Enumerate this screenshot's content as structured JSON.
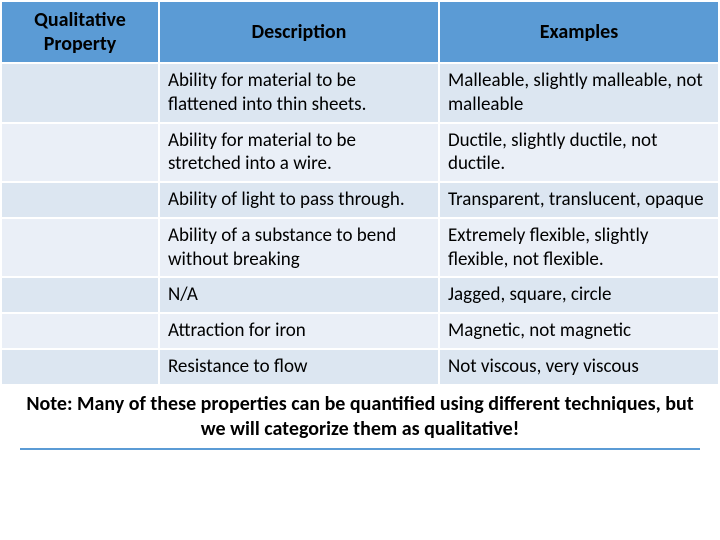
{
  "table": {
    "header_bg": "#5b9bd5",
    "band_a_bg": "#dce6f1",
    "band_b_bg": "#eaeff7",
    "border_color": "#ffffff",
    "text_color": "#000000",
    "header_fontsize": 20,
    "cell_fontsize": 19,
    "columns": [
      "Qualitative Property",
      "Description",
      "Examples"
    ],
    "rows": [
      {
        "property": "",
        "description": "Ability for material to be flattened into thin sheets.",
        "examples": "Malleable, slightly malleable, not malleable"
      },
      {
        "property": "",
        "description": "Ability for material to be stretched into a wire.",
        "examples": "Ductile, slightly ductile, not ductile."
      },
      {
        "property": "",
        "description": "Ability of light to pass through.",
        "examples": "Transparent, translucent, opaque"
      },
      {
        "property": "",
        "description": "Ability of a substance to bend without breaking",
        "examples": "Extremely flexible, slightly flexible, not flexible."
      },
      {
        "property": "",
        "description": "N/A",
        "examples": "Jagged, square, circle"
      },
      {
        "property": "",
        "description": "Attraction for iron",
        "examples": "Magnetic, not magnetic"
      },
      {
        "property": "",
        "description": "Resistance to flow",
        "examples": "Not viscous, very viscous"
      }
    ]
  },
  "note": {
    "text": "Note: Many of these properties can be quantified using different techniques, but we will categorize them as qualitative!",
    "underline_color": "#5b9bd5",
    "fontsize": 20
  }
}
